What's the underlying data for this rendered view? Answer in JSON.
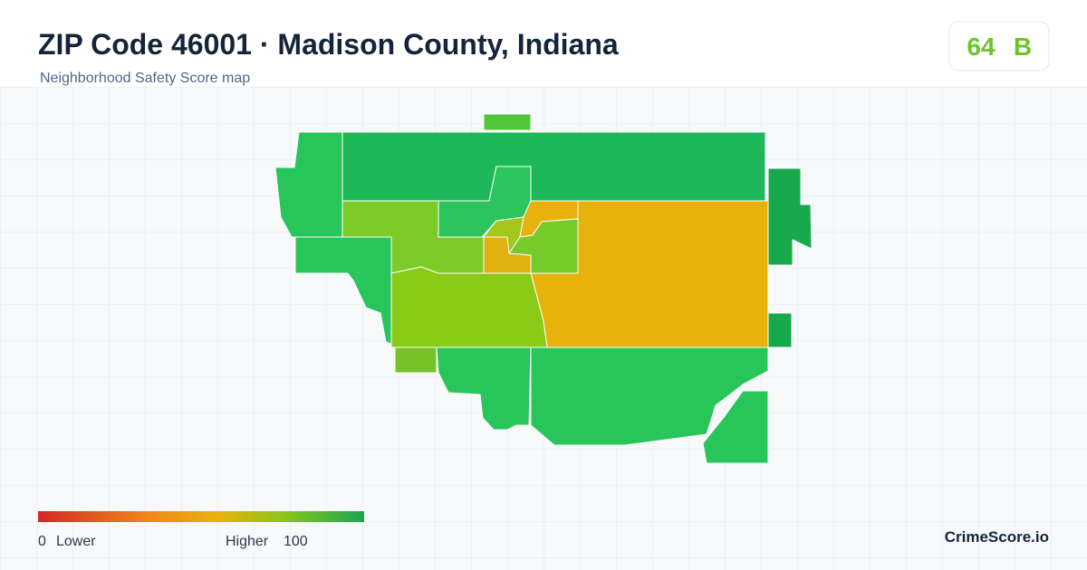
{
  "header": {
    "title": "ZIP Code 46001 · Madison County, Indiana",
    "subtitle": "Neighborhood Safety Score map"
  },
  "score": {
    "value": 64,
    "grade": "B"
  },
  "legend": {
    "min": 0,
    "min_label": "Lower",
    "max_label": "Higher",
    "max": 100
  },
  "brand": "CrimeScore.io"
}
